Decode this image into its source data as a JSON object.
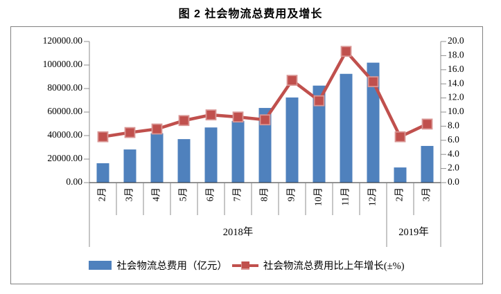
{
  "title": "图 2 社会物流总费用及增长",
  "chart_data": {
    "type": "combo-bar-line",
    "title": "图 2 社会物流总费用及增长",
    "categories": [
      "2月",
      "3月",
      "4月",
      "5月",
      "6月",
      "7月",
      "8月",
      "9月",
      "10月",
      "11月",
      "12月",
      "2月",
      "3月"
    ],
    "year_groups": [
      {
        "label": "2018年",
        "span": 11
      },
      {
        "label": "2019年",
        "span": 2
      }
    ],
    "series": [
      {
        "name": "社会物流总费用（亿元）",
        "type": "bar",
        "axis": "left",
        "color": "#4F81BD",
        "values": [
          16500,
          28200,
          42000,
          37000,
          46900,
          52400,
          63500,
          72400,
          82500,
          92500,
          102000,
          12900,
          31200
        ]
      },
      {
        "name": "社会物流总费用比上年增长(±%)",
        "type": "line",
        "axis": "right",
        "color": "#C0504D",
        "marker_color_light": "#D99694",
        "values": [
          6.5,
          7.1,
          7.6,
          8.8,
          9.6,
          9.3,
          8.9,
          14.5,
          11.6,
          18.6,
          14.3,
          6.5,
          8.3
        ]
      }
    ],
    "left_axis": {
      "min": 0,
      "max": 120000,
      "step": 20000,
      "decimals": 2
    },
    "right_axis": {
      "min": 0,
      "max": 20,
      "step": 2,
      "decimals": 1
    },
    "grid": false,
    "legend_position": "bottom",
    "axis_line_color": "#8C8C8C",
    "x_axis_line_color": "#262626",
    "text_color": "#000000"
  }
}
